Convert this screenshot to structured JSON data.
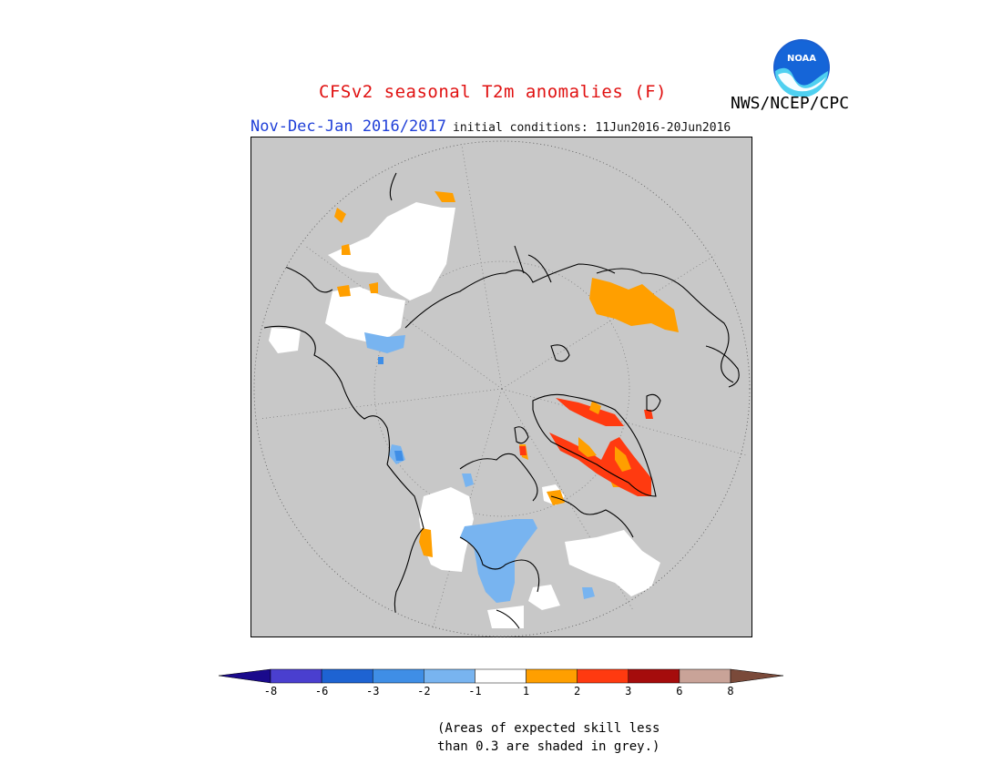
{
  "title": "CFSv2 seasonal T2m anomalies (F)",
  "period": "Nov-Dec-Jan 2016/2017",
  "initial_conditions": "initial conditions: 11Jun2016-20Jun2016",
  "agency": "NWS/NCEP/CPC",
  "logo_text": "NOAA",
  "colors": {
    "title": "#e01010",
    "period": "#1f3fd8",
    "low_skill_grey": "#c8c8c8",
    "neutral": "#ffffff"
  },
  "legend": {
    "tick_labels": [
      "-8",
      "-6",
      "-3",
      "-2",
      "-1",
      "1",
      "2",
      "3",
      "6",
      "8"
    ],
    "bins": [
      {
        "range": "< -8",
        "color": "#1a0a8c"
      },
      {
        "range": "-8 to -6",
        "color": "#4a3fcf"
      },
      {
        "range": "-6 to -3",
        "color": "#1e63d2"
      },
      {
        "range": "-3 to -2",
        "color": "#3f8ee6"
      },
      {
        "range": "-2 to -1",
        "color": "#78b4f0"
      },
      {
        "range": "-1 to 1",
        "color": "#ffffff"
      },
      {
        "range": "1 to 2",
        "color": "#ff9f00"
      },
      {
        "range": "2 to 3",
        "color": "#ff3a10"
      },
      {
        "range": "3 to 6",
        "color": "#a50c0c"
      },
      {
        "range": "6 to 8",
        "color": "#c9a398"
      },
      {
        "range": "> 8",
        "color": "#7a4a3a"
      }
    ]
  },
  "note_line1": "(Areas of expected skill less",
  "note_line2": "than 0.3 are shaded in grey.)"
}
